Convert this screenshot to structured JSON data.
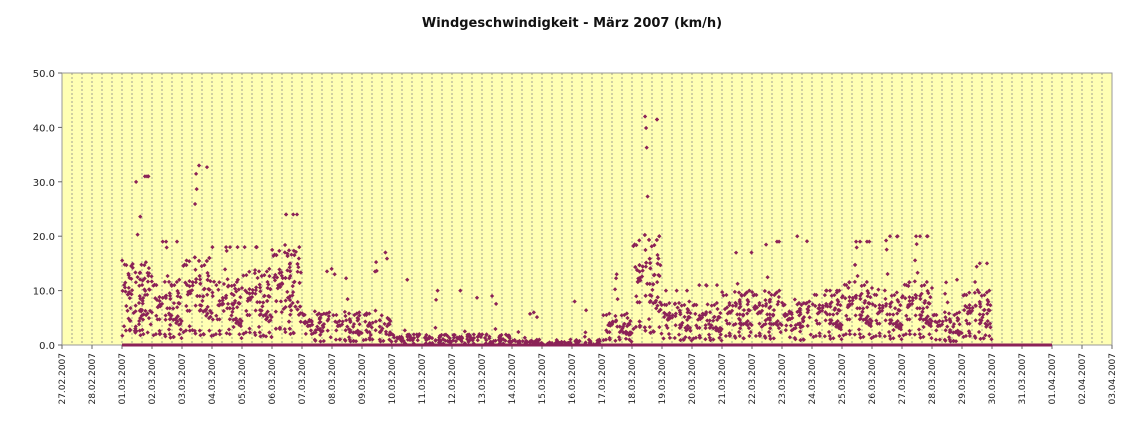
{
  "chart_data": {
    "type": "scatter",
    "title": "Windgeschwindigkeit - März 2007 (km/h)",
    "xlabel": "",
    "ylabel": "",
    "ylim": [
      0,
      50
    ],
    "y_ticks": [
      "0.0",
      "10.0",
      "20.0",
      "30.0",
      "40.0",
      "50.0"
    ],
    "x_tick_labels": [
      "27.02.2007",
      "28.02.2007",
      "01.03.2007",
      "02.03.2007",
      "03.03.2007",
      "04.03.2007",
      "05.03.2007",
      "06.03.2007",
      "07.03.2007",
      "08.03.2007",
      "09.03.2007",
      "10.03.2007",
      "11.03.2007",
      "12.03.2007",
      "13.03.2007",
      "14.03.2007",
      "15.03.2007",
      "16.03.2007",
      "17.03.2007",
      "18.03.2007",
      "19.03.2007",
      "20.03.2007",
      "21.03.2007",
      "22.03.2007",
      "23.03.2007",
      "24.03.2007",
      "25.03.2007",
      "26.03.2007",
      "27.03.2007",
      "28.03.2007",
      "29.03.2007",
      "30.03.2007",
      "31.03.2007",
      "01.04.2007",
      "02.04.2007",
      "03.04.2007"
    ],
    "x_unit": "days since 27.02.2007",
    "grid": {
      "horizontal": false,
      "vertical": true,
      "vertical_subdivisions": 3
    },
    "plot_background": "#ffffb3",
    "marker_color": "#8b2257",
    "day_profiles": [
      {
        "day": 2,
        "level": 8,
        "max": 31
      },
      {
        "day": 3,
        "level": 6,
        "max": 19
      },
      {
        "day": 4,
        "level": 8,
        "max": 33
      },
      {
        "day": 5,
        "level": 6,
        "max": 18
      },
      {
        "day": 6,
        "level": 7,
        "max": 18
      },
      {
        "day": 7,
        "level": 9,
        "max": 24
      },
      {
        "day": 8,
        "level": 3,
        "max": 14
      },
      {
        "day": 9,
        "level": 3,
        "max": 13
      },
      {
        "day": 10,
        "level": 3,
        "max": 17
      },
      {
        "day": 11,
        "level": 1,
        "max": 12
      },
      {
        "day": 12,
        "level": 1,
        "max": 10
      },
      {
        "day": 13,
        "level": 1,
        "max": 10
      },
      {
        "day": 14,
        "level": 1,
        "max": 9
      },
      {
        "day": 15,
        "level": 0.5,
        "max": 6
      },
      {
        "day": 16,
        "level": 0.3,
        "max": 1
      },
      {
        "day": 17,
        "level": 0.5,
        "max": 8
      },
      {
        "day": 18,
        "level": 3,
        "max": 13
      },
      {
        "day": 19,
        "level": 10,
        "max": 42
      },
      {
        "day": 20,
        "level": 4,
        "max": 10
      },
      {
        "day": 21,
        "level": 4,
        "max": 11
      },
      {
        "day": 22,
        "level": 5,
        "max": 17
      },
      {
        "day": 23,
        "level": 5,
        "max": 19
      },
      {
        "day": 24,
        "level": 4,
        "max": 20
      },
      {
        "day": 25,
        "level": 5,
        "max": 10
      },
      {
        "day": 26,
        "level": 6,
        "max": 19
      },
      {
        "day": 27,
        "level": 5,
        "max": 20
      },
      {
        "day": 28,
        "level": 6,
        "max": 20
      },
      {
        "day": 29,
        "level": 3,
        "max": 12
      },
      {
        "day": 30,
        "level": 5,
        "max": 15
      },
      {
        "day": 31,
        "level": 0,
        "max": 0
      },
      {
        "day": 32,
        "level": 0,
        "max": 0
      }
    ],
    "notes": "Scatter of ~10-minute wind speed readings through March 2007; many zero values form a baseline."
  }
}
